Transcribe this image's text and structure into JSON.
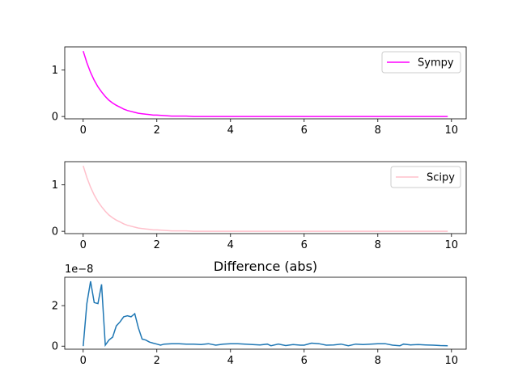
{
  "chart_data": [
    {
      "type": "line",
      "title": "",
      "xlim": [
        -0.5,
        10.4
      ],
      "ylim": [
        -0.05,
        1.5
      ],
      "xticks": [
        0,
        2,
        4,
        6,
        8,
        10
      ],
      "yticks": [
        0,
        1
      ],
      "legend": "upper-right",
      "series": [
        {
          "name": "Sympy",
          "color": "#ff00ff",
          "x": [
            0,
            0.1,
            0.2,
            0.3,
            0.4,
            0.5,
            0.6,
            0.7,
            0.8,
            0.9,
            1.0,
            1.1,
            1.2,
            1.3,
            1.4,
            1.5,
            1.6,
            1.7,
            1.8,
            1.9,
            2.0,
            2.2,
            2.4,
            2.6,
            2.8,
            3.0,
            3.5,
            4.0,
            5.0,
            6.0,
            7.0,
            8.0,
            9.0,
            9.9
          ],
          "y": [
            1.41,
            1.16,
            0.95,
            0.78,
            0.64,
            0.53,
            0.43,
            0.35,
            0.29,
            0.24,
            0.2,
            0.16,
            0.13,
            0.11,
            0.09,
            0.07,
            0.06,
            0.05,
            0.04,
            0.03,
            0.03,
            0.02,
            0.01,
            0.01,
            0.01,
            0.0,
            0.0,
            0.0,
            0.0,
            0.0,
            0.0,
            0.0,
            0.0,
            0.0
          ]
        }
      ]
    },
    {
      "type": "line",
      "title": "",
      "xlim": [
        -0.5,
        10.4
      ],
      "ylim": [
        -0.05,
        1.5
      ],
      "xticks": [
        0,
        2,
        4,
        6,
        8,
        10
      ],
      "yticks": [
        0,
        1
      ],
      "legend": "upper-right",
      "series": [
        {
          "name": "Scipy",
          "color": "#ffc0cb",
          "x": [
            0,
            0.1,
            0.2,
            0.3,
            0.4,
            0.5,
            0.6,
            0.7,
            0.8,
            0.9,
            1.0,
            1.1,
            1.2,
            1.3,
            1.4,
            1.5,
            1.6,
            1.7,
            1.8,
            1.9,
            2.0,
            2.2,
            2.4,
            2.6,
            2.8,
            3.0,
            3.5,
            4.0,
            5.0,
            6.0,
            7.0,
            8.0,
            9.0,
            9.9
          ],
          "y": [
            1.41,
            1.16,
            0.95,
            0.78,
            0.64,
            0.53,
            0.43,
            0.35,
            0.29,
            0.24,
            0.2,
            0.16,
            0.13,
            0.11,
            0.09,
            0.07,
            0.06,
            0.05,
            0.04,
            0.03,
            0.03,
            0.02,
            0.01,
            0.01,
            0.01,
            0.0,
            0.0,
            0.0,
            0.0,
            0.0,
            0.0,
            0.0,
            0.0,
            0.0
          ]
        }
      ]
    },
    {
      "type": "line",
      "title": "Difference (abs)",
      "offset_text": "1e−8",
      "xlim": [
        -0.5,
        10.4
      ],
      "ylim": [
        -0.15,
        3.4
      ],
      "xticks": [
        0,
        2,
        4,
        6,
        8,
        10
      ],
      "yticks": [
        0,
        2
      ],
      "series": [
        {
          "name": "",
          "color": "#1f77b4",
          "x": [
            0,
            0.1,
            0.2,
            0.3,
            0.4,
            0.5,
            0.6,
            0.7,
            0.8,
            0.9,
            1.0,
            1.1,
            1.2,
            1.3,
            1.4,
            1.5,
            1.6,
            1.7,
            1.8,
            1.9,
            2.0,
            2.1,
            2.2,
            2.4,
            2.6,
            2.8,
            3.0,
            3.2,
            3.4,
            3.6,
            3.8,
            4.0,
            4.2,
            4.4,
            4.6,
            4.8,
            5.0,
            5.1,
            5.3,
            5.5,
            5.7,
            5.9,
            6.0,
            6.2,
            6.4,
            6.6,
            6.8,
            7.0,
            7.2,
            7.4,
            7.6,
            7.8,
            8.0,
            8.2,
            8.4,
            8.6,
            8.7,
            8.9,
            9.1,
            9.3,
            9.5,
            9.7,
            9.9
          ],
          "y": [
            0.0,
            2.1,
            3.2,
            2.15,
            2.1,
            3.05,
            0.05,
            0.3,
            0.45,
            1.0,
            1.2,
            1.45,
            1.5,
            1.45,
            1.6,
            0.9,
            0.35,
            0.3,
            0.2,
            0.15,
            0.1,
            0.05,
            0.1,
            0.12,
            0.12,
            0.1,
            0.1,
            0.08,
            0.12,
            0.05,
            0.1,
            0.12,
            0.12,
            0.1,
            0.08,
            0.06,
            0.1,
            0.02,
            0.1,
            0.03,
            0.08,
            0.05,
            0.05,
            0.15,
            0.12,
            0.05,
            0.06,
            0.1,
            0.02,
            0.1,
            0.08,
            0.1,
            0.12,
            0.12,
            0.05,
            0.02,
            0.1,
            0.06,
            0.08,
            0.06,
            0.05,
            0.03,
            0.02
          ]
        }
      ]
    }
  ]
}
